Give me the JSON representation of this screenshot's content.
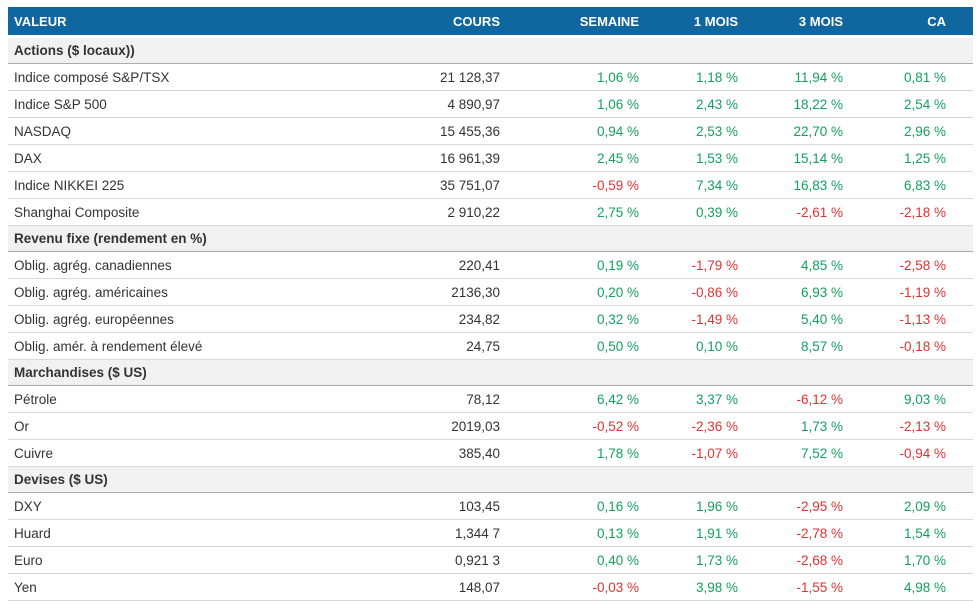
{
  "theme": {
    "header_bg": "#10669F",
    "header_text": "#FFFFFF",
    "section_bg": "#F1F1F1",
    "positive_color": "#13A05E",
    "negative_color": "#E03231",
    "row_border": "#D8D8D8",
    "text_color": "#333333"
  },
  "table": {
    "columns": [
      "VALEUR",
      "COURS",
      "SEMAINE",
      "1 MOIS",
      "3 MOIS",
      "CA"
    ],
    "sections": [
      {
        "label": "Actions ($ locaux))",
        "rows": [
          {
            "label": "Indice composé S&P/TSX",
            "cours": "21 128,37",
            "semaine": "1,06 %",
            "mois1": "1,18 %",
            "mois3": "11,94 %",
            "ca": "0,81 %"
          },
          {
            "label": "Indice S&P 500",
            "cours": "4 890,97",
            "semaine": "1,06 %",
            "mois1": "2,43 %",
            "mois3": "18,22 %",
            "ca": "2,54 %"
          },
          {
            "label": "NASDAQ",
            "cours": "15 455,36",
            "semaine": "0,94 %",
            "mois1": "2,53 %",
            "mois3": "22,70 %",
            "ca": "2,96 %"
          },
          {
            "label": "DAX",
            "cours": "16 961,39",
            "semaine": "2,45 %",
            "mois1": "1,53 %",
            "mois3": "15,14 %",
            "ca": "1,25 %"
          },
          {
            "label": "Indice NIKKEI 225",
            "cours": "35 751,07",
            "semaine": "-0,59 %",
            "mois1": "7,34 %",
            "mois3": "16,83 %",
            "ca": "6,83 %"
          },
          {
            "label": "Shanghai Composite",
            "cours": "2 910,22",
            "semaine": "2,75 %",
            "mois1": "0,39 %",
            "mois3": "-2,61 %",
            "ca": "-2,18 %"
          }
        ]
      },
      {
        "label": "Revenu fixe (rendement en %)",
        "rows": [
          {
            "label": "Oblig. agrég. canadiennes",
            "cours": "220,41",
            "semaine": "0,19 %",
            "mois1": "-1,79 %",
            "mois3": "4,85 %",
            "ca": "-2,58 %"
          },
          {
            "label": "Oblig. agrég. américaines",
            "cours": "2136,30",
            "semaine": "0,20 %",
            "mois1": "-0,86 %",
            "mois3": "6,93 %",
            "ca": "-1,19 %"
          },
          {
            "label": "Oblig. agrég. européennes",
            "cours": "234,82",
            "semaine": "0,32 %",
            "mois1": "-1,49 %",
            "mois3": "5,40 %",
            "ca": "-1,13 %"
          },
          {
            "label": "Oblig. amér. à rendement élevé",
            "cours": "24,75",
            "semaine": "0,50 %",
            "mois1": "0,10 %",
            "mois3": "8,57 %",
            "ca": "-0,18 %"
          }
        ]
      },
      {
        "label": "Marchandises ($ US)",
        "rows": [
          {
            "label": "Pétrole",
            "cours": "78,12",
            "semaine": "6,42 %",
            "mois1": "3,37 %",
            "mois3": "-6,12 %",
            "ca": "9,03 %"
          },
          {
            "label": "Or",
            "cours": "2019,03",
            "semaine": "-0,52 %",
            "mois1": "-2,36 %",
            "mois3": "1,73 %",
            "ca": "-2,13 %"
          },
          {
            "label": "Cuivre",
            "cours": "385,40",
            "semaine": "1,78 %",
            "mois1": "-1,07 %",
            "mois3": "7,52 %",
            "ca": "-0,94 %"
          }
        ]
      },
      {
        "label": "Devises ($ US)",
        "rows": [
          {
            "label": "DXY",
            "cours": "103,45",
            "semaine": "0,16 %",
            "mois1": "1,96 %",
            "mois3": "-2,95 %",
            "ca": "2,09 %"
          },
          {
            "label": "Huard",
            "cours": "1,344 7",
            "semaine": "0,13 %",
            "mois1": "1,91 %",
            "mois3": "-2,78 %",
            "ca": "1,54 %"
          },
          {
            "label": "Euro",
            "cours": "0,921 3",
            "semaine": "0,40 %",
            "mois1": "1,73 %",
            "mois3": "-2,68 %",
            "ca": "1,70 %"
          },
          {
            "label": "Yen",
            "cours": "148,07",
            "semaine": "-0,03 %",
            "mois1": "3,98 %",
            "mois3": "-1,55 %",
            "ca": "4,98 %"
          }
        ]
      }
    ]
  }
}
